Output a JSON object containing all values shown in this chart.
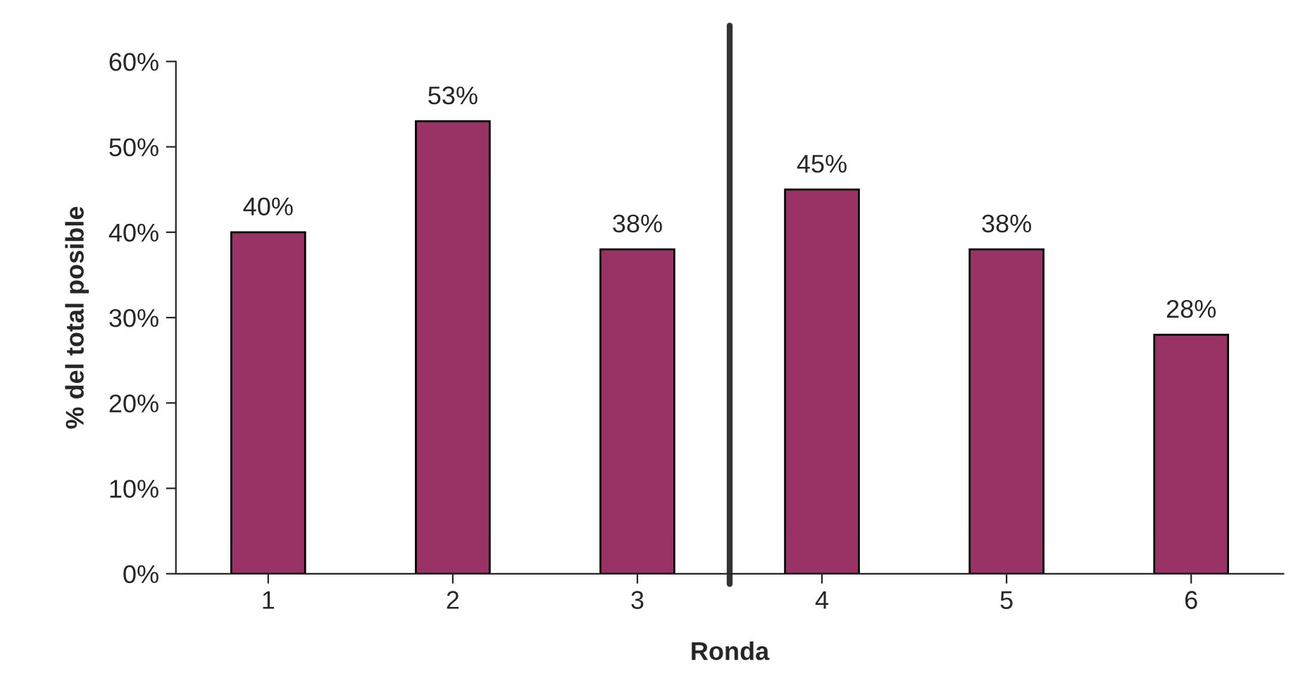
{
  "chart_data": {
    "type": "bar",
    "xlabel": "Ronda",
    "ylabel": "% del total posible",
    "x": [
      1,
      2,
      3,
      4,
      5,
      6
    ],
    "values": [
      40,
      53,
      38,
      45,
      38,
      28
    ],
    "value_labels": [
      "40%",
      "53%",
      "38%",
      "45%",
      "38%",
      "28%"
    ],
    "color": "#993366",
    "xlim": [
      0.5,
      6.5
    ],
    "xticks": [
      1,
      2,
      3,
      4,
      5,
      6
    ],
    "ylim": [
      0,
      60
    ],
    "yticks": [
      {
        "value": 0,
        "label": "0%"
      },
      {
        "value": 10,
        "label": "10%"
      },
      {
        "value": 20,
        "label": "20%"
      },
      {
        "value": 30,
        "label": "30%"
      },
      {
        "value": 40,
        "label": "40%"
      },
      {
        "value": 50,
        "label": "50%"
      },
      {
        "value": 60,
        "label": "60%"
      }
    ],
    "ref_lines": [
      {
        "axis": "x",
        "value": 3.5,
        "color": "#333333"
      }
    ],
    "grid": false,
    "legend": false
  }
}
